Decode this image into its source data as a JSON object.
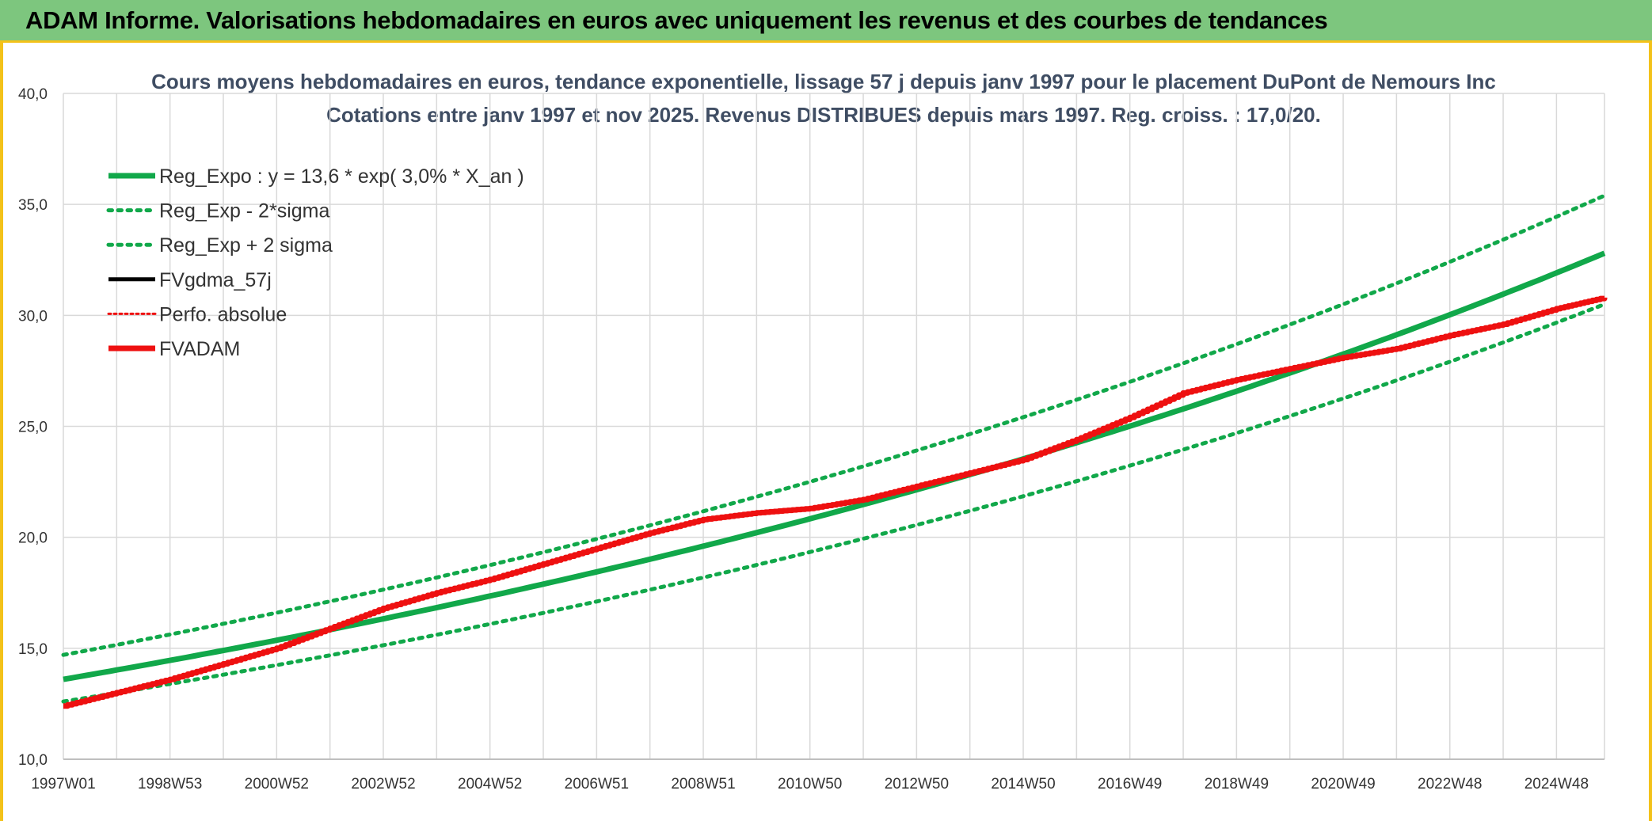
{
  "header": {
    "title": "ADAM Informe. Valorisations hebdomadaires en euros avec uniquement les revenus et des courbes de tendances"
  },
  "colors": {
    "header_bg": "#7dc67e",
    "accent_border": "#f3c21a",
    "green": "#11a84a",
    "red": "#ee1010",
    "black": "#000000",
    "grid": "#d9d9d9",
    "title_text": "#3f4d63"
  },
  "chart_data": {
    "type": "line",
    "title_line1": "Cours moyens hebdomadaires en euros, tendance exponentielle, lissage 57 j depuis janv 1997 pour le placement DuPont de Nemours Inc",
    "title_line2": "Cotations entre janv 1997 et nov 2025. Revenus DISTRIBUES depuis mars 1997. Reg. croiss. : 17,0/20.",
    "xlabel": "",
    "ylabel": "",
    "x_range": [
      1997.0,
      2025.9
    ],
    "ylim": [
      10,
      40
    ],
    "y_ticks": [
      10,
      15,
      20,
      25,
      30,
      35,
      40
    ],
    "y_tick_labels": [
      "10,0",
      "15,0",
      "20,0",
      "25,0",
      "30,0",
      "35,0",
      "40,0"
    ],
    "x_ticks": [
      {
        "label": "1997W01",
        "year": 1997.0
      },
      {
        "label": "1998W53",
        "year": 1999.0
      },
      {
        "label": "2000W52",
        "year": 2001.0
      },
      {
        "label": "2002W52",
        "year": 2003.0
      },
      {
        "label": "2004W52",
        "year": 2005.0
      },
      {
        "label": "2006W51",
        "year": 2007.0
      },
      {
        "label": "2008W51",
        "year": 2009.0
      },
      {
        "label": "2010W50",
        "year": 2011.0
      },
      {
        "label": "2012W50",
        "year": 2013.0
      },
      {
        "label": "2014W50",
        "year": 2015.0
      },
      {
        "label": "2016W49",
        "year": 2017.0
      },
      {
        "label": "2018W49",
        "year": 2019.0
      },
      {
        "label": "2020W49",
        "year": 2021.0
      },
      {
        "label": "2022W48",
        "year": 2023.0
      },
      {
        "label": "2024W48",
        "year": 2025.0
      }
    ],
    "minor_x_ticks": [
      1998.0,
      2000.0,
      2002.0,
      2004.0,
      2006.0,
      2008.0,
      2010.0,
      2012.0,
      2014.0,
      2016.0,
      2018.0,
      2020.0,
      2022.0,
      2024.0
    ],
    "grid": true,
    "legend_position": "top-left",
    "series": [
      {
        "name": "Reg_Expo : y = 13,6 * exp( 3,0% *  X_an )",
        "color": "#11a84a",
        "style": "solid",
        "weight": "thick",
        "points": [
          [
            1997.0,
            13.6
          ],
          [
            2025.9,
            32.8
          ]
        ]
      },
      {
        "name": "Reg_Exp - 2*sigma",
        "color": "#11a84a",
        "style": "dotted",
        "weight": "medium",
        "points": [
          [
            1997.0,
            12.6
          ],
          [
            2025.9,
            30.5
          ]
        ]
      },
      {
        "name": "Reg_Exp + 2 sigma",
        "color": "#11a84a",
        "style": "dotted",
        "weight": "medium",
        "points": [
          [
            1997.0,
            14.7
          ],
          [
            2025.9,
            35.4
          ]
        ]
      },
      {
        "name": "FVgdma_57j",
        "color": "#000000",
        "style": "solid",
        "weight": "medium",
        "points": []
      },
      {
        "name": "Perfo. absolue",
        "color": "#ee1010",
        "style": "dotted",
        "weight": "thin",
        "points": []
      },
      {
        "name": "FVADAM",
        "color": "#ee1010",
        "style": "solid",
        "weight": "thick",
        "points": [
          [
            1997.0,
            12.4
          ],
          [
            1998.0,
            13.0
          ],
          [
            1999.0,
            13.6
          ],
          [
            2000.0,
            14.3
          ],
          [
            2001.0,
            15.0
          ],
          [
            2002.0,
            15.9
          ],
          [
            2003.0,
            16.8
          ],
          [
            2004.0,
            17.5
          ],
          [
            2005.0,
            18.1
          ],
          [
            2006.0,
            18.8
          ],
          [
            2007.0,
            19.5
          ],
          [
            2008.0,
            20.2
          ],
          [
            2009.0,
            20.8
          ],
          [
            2010.0,
            21.1
          ],
          [
            2011.0,
            21.3
          ],
          [
            2012.0,
            21.7
          ],
          [
            2013.0,
            22.3
          ],
          [
            2014.0,
            22.9
          ],
          [
            2015.0,
            23.5
          ],
          [
            2016.0,
            24.4
          ],
          [
            2017.0,
            25.4
          ],
          [
            2018.0,
            26.5
          ],
          [
            2019.0,
            27.1
          ],
          [
            2020.0,
            27.6
          ],
          [
            2021.0,
            28.1
          ],
          [
            2022.0,
            28.5
          ],
          [
            2023.0,
            29.1
          ],
          [
            2024.0,
            29.6
          ],
          [
            2025.0,
            30.3
          ],
          [
            2025.9,
            30.8
          ]
        ]
      }
    ]
  }
}
